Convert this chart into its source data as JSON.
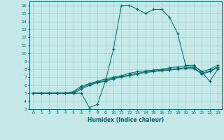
{
  "xlabel": "Humidex (Indice chaleur)",
  "bg_color": "#c5e8e8",
  "line_color": "#006666",
  "x_values": [
    0,
    1,
    2,
    3,
    4,
    5,
    6,
    7,
    8,
    9,
    10,
    11,
    12,
    13,
    14,
    15,
    16,
    17,
    18,
    19,
    20,
    21,
    22,
    23
  ],
  "line1": [
    5,
    5,
    5,
    5,
    5,
    5,
    5,
    3.2,
    3.6,
    6.5,
    10.5,
    16,
    16,
    15.5,
    15,
    15.5,
    15.5,
    14.5,
    12.5,
    8.5,
    8.5,
    7.7,
    6.5,
    8.0
  ],
  "line2": [
    5,
    5,
    5,
    5,
    5,
    5.0,
    5.5,
    6.0,
    6.3,
    6.5,
    6.8,
    7.0,
    7.2,
    7.4,
    7.6,
    7.7,
    7.8,
    7.9,
    8.0,
    8.1,
    8.1,
    7.4,
    7.7,
    8.2
  ],
  "line3": [
    5,
    5,
    5,
    5,
    5,
    5.1,
    5.7,
    6.1,
    6.4,
    6.6,
    6.9,
    7.1,
    7.3,
    7.5,
    7.7,
    7.8,
    7.9,
    8.0,
    8.1,
    8.2,
    8.2,
    7.5,
    7.8,
    8.3
  ],
  "line4": [
    5,
    5,
    5,
    5,
    5,
    5.2,
    5.9,
    6.2,
    6.5,
    6.8,
    7.0,
    7.2,
    7.5,
    7.7,
    7.8,
    7.9,
    8.0,
    8.2,
    8.3,
    8.4,
    8.4,
    7.7,
    8.0,
    8.5
  ],
  "ylim": [
    3,
    16.5
  ],
  "xlim": [
    -0.5,
    23.5
  ],
  "yticks": [
    3,
    4,
    5,
    6,
    7,
    8,
    9,
    10,
    11,
    12,
    13,
    14,
    15,
    16
  ],
  "xticks": [
    0,
    1,
    2,
    3,
    4,
    5,
    6,
    7,
    8,
    9,
    10,
    11,
    12,
    13,
    14,
    15,
    16,
    17,
    18,
    19,
    20,
    21,
    22,
    23
  ]
}
